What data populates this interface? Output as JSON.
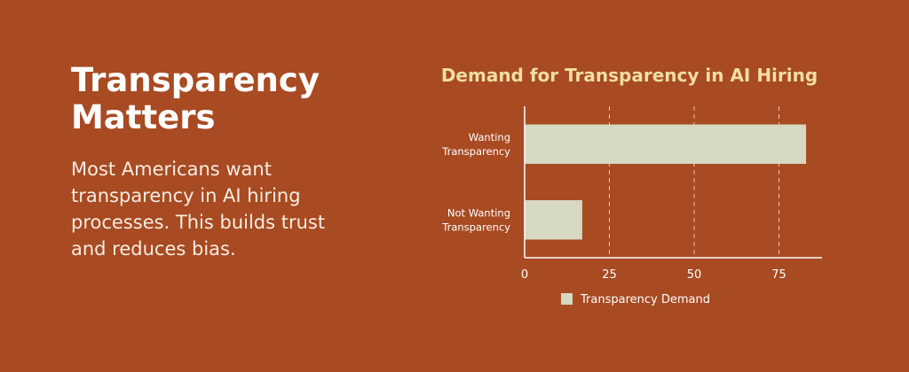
{
  "headline": "Transparency Matters",
  "body": "Most Americans want transparency in AI hiring processes. This builds trust and reduces bias.",
  "colors": {
    "background": "#A84A22",
    "bar": "#D6D8C2",
    "title": "#F2DEA4",
    "text": "#FFFFFF"
  },
  "chart_data": {
    "type": "bar",
    "orientation": "horizontal",
    "title": "Demand for Transparency in AI Hiring",
    "categories": [
      "Wanting Transparency",
      "Not Wanting Transparency"
    ],
    "series": [
      {
        "name": "Transparency Demand",
        "values": [
          83,
          17
        ]
      }
    ],
    "xlim": [
      0,
      87
    ],
    "xticks": [
      0,
      25,
      50,
      75
    ],
    "grid": "vertical-dashed",
    "legend_position": "bottom"
  }
}
